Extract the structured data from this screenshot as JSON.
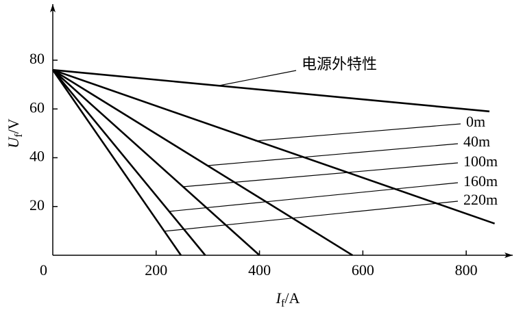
{
  "chart_data": {
    "type": "line",
    "x_label": [
      "I",
      "f",
      "/A"
    ],
    "y_label": [
      "U",
      "f",
      "/V"
    ],
    "xlim": [
      0,
      890
    ],
    "ylim": [
      0,
      103
    ],
    "xticks": [
      0,
      200,
      400,
      600,
      800
    ],
    "yticks": [
      20,
      40,
      60,
      80
    ],
    "series": [
      {
        "name": "电源外特性",
        "color": "#000000",
        "x": [
          0,
          845
        ],
        "values": [
          76,
          59
        ]
      },
      {
        "name": "0m",
        "color": "#000000",
        "x": [
          0,
          855
        ],
        "values": [
          76,
          13
        ]
      },
      {
        "name": "40m",
        "color": "#000000",
        "x": [
          0,
          580
        ],
        "values": [
          76,
          0
        ]
      },
      {
        "name": "100m",
        "color": "#000000",
        "x": [
          0,
          400
        ],
        "values": [
          76,
          0
        ]
      },
      {
        "name": "160m",
        "color": "#000000",
        "x": [
          0,
          295
        ],
        "values": [
          76,
          0
        ]
      },
      {
        "name": "220m",
        "color": "#000000",
        "x": [
          0,
          248
        ],
        "values": [
          76,
          0
        ]
      }
    ]
  }
}
